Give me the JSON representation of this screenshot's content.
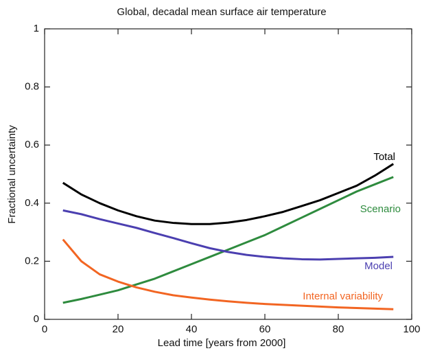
{
  "chart_data": {
    "type": "line",
    "title": "Global, decadal mean surface air temperature",
    "x_label": "Lead time  [years from 2000]",
    "y_label": "Fractional uncertainty",
    "x": [
      5,
      10,
      15,
      20,
      25,
      30,
      35,
      40,
      45,
      50,
      55,
      60,
      65,
      70,
      75,
      80,
      85,
      90,
      95
    ],
    "series": [
      {
        "name": "Total",
        "color": "#000000",
        "values": [
          0.47,
          0.43,
          0.4,
          0.375,
          0.355,
          0.34,
          0.332,
          0.328,
          0.328,
          0.333,
          0.342,
          0.355,
          0.37,
          0.39,
          0.41,
          0.435,
          0.46,
          0.495,
          0.535
        ]
      },
      {
        "name": "Scenario",
        "color": "#2e8b3e",
        "values": [
          0.057,
          0.07,
          0.085,
          0.1,
          0.12,
          0.14,
          0.165,
          0.19,
          0.215,
          0.24,
          0.265,
          0.29,
          0.32,
          0.35,
          0.38,
          0.41,
          0.44,
          0.465,
          0.49
        ]
      },
      {
        "name": "Model",
        "color": "#4b3fb0",
        "values": [
          0.375,
          0.362,
          0.345,
          0.33,
          0.315,
          0.297,
          0.28,
          0.262,
          0.245,
          0.232,
          0.222,
          0.215,
          0.21,
          0.207,
          0.206,
          0.208,
          0.21,
          0.212,
          0.215
        ]
      },
      {
        "name": "Internal variability",
        "color": "#f26522",
        "values": [
          0.275,
          0.2,
          0.155,
          0.13,
          0.11,
          0.095,
          0.083,
          0.075,
          0.068,
          0.062,
          0.057,
          0.053,
          0.05,
          0.047,
          0.044,
          0.041,
          0.039,
          0.037,
          0.035
        ]
      }
    ],
    "xlim": [
      0,
      100
    ],
    "xticks": [
      0,
      20,
      40,
      60,
      80,
      100
    ],
    "ylim": [
      0,
      1
    ],
    "yticks": [
      0,
      0.2,
      0.4,
      0.6,
      0.8,
      1
    ],
    "grid": false
  }
}
